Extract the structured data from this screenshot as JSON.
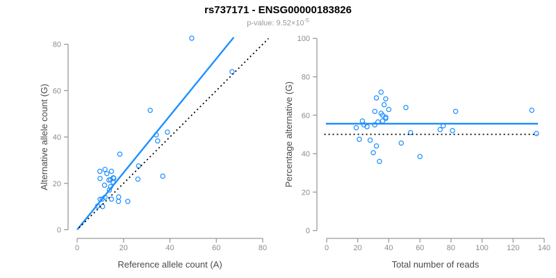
{
  "header": {
    "title": "rs737171 - ENSG00000183826",
    "subtitle_base": "p-value: 9.52×10",
    "subtitle_exponent": "-5"
  },
  "colors": {
    "accent_blue": "#1E90FF",
    "dashed_black": "#000000",
    "axis_gray": "#9a9a9a",
    "tick_label_gray": "#8c8c8c",
    "axis_title_gray": "#4a4a4a",
    "subtitle_gray": "#9a9a9a"
  },
  "chart_data": [
    {
      "type": "scatter",
      "name": "allele-counts",
      "xlabel": "Reference allele count (A)",
      "ylabel": "Alternative allele count (G)",
      "xlim": [
        0,
        80
      ],
      "ylim": [
        0,
        80
      ],
      "xticks": [
        0,
        20,
        40,
        60,
        80
      ],
      "yticks": [
        0,
        20,
        40,
        60,
        80
      ],
      "grid": false,
      "marker": "open-circle",
      "points": [
        [
          9.8,
          25.2
        ],
        [
          9.9,
          22.1
        ],
        [
          12,
          26
        ],
        [
          12.8,
          24.2
        ],
        [
          18.4,
          32.6
        ],
        [
          31.5,
          51.5
        ],
        [
          49.4,
          82.6
        ],
        [
          11.8,
          19.2
        ],
        [
          13.7,
          21.4
        ],
        [
          14.8,
          25.2
        ],
        [
          15.6,
          22.4
        ],
        [
          14.4,
          21.6
        ],
        [
          9.9,
          13.1
        ],
        [
          10.8,
          13.2
        ],
        [
          12,
          14
        ],
        [
          13.9,
          17.1
        ],
        [
          14.4,
          18.6
        ],
        [
          15.5,
          20.5
        ],
        [
          15.8,
          22.2
        ],
        [
          8.8,
          10.2
        ],
        [
          26.5,
          27.5
        ],
        [
          34.7,
          38.3
        ],
        [
          34.1,
          40.9
        ],
        [
          38.9,
          42.1
        ],
        [
          66.8,
          68.2
        ],
        [
          11,
          10
        ],
        [
          26.2,
          21.8
        ],
        [
          14.8,
          13.2
        ],
        [
          17.9,
          14.1
        ],
        [
          17.8,
          12.2
        ],
        [
          36.9,
          23.1
        ],
        [
          21.8,
          12.2
        ]
      ],
      "lines": [
        {
          "name": "regression-line",
          "x1": 0,
          "y1": 0,
          "x2": 67.5,
          "y2": 83,
          "style": "solid",
          "color": "#1E90FF"
        },
        {
          "name": "identity-line",
          "x1": 0.8,
          "y1": 0.8,
          "x2": 82.5,
          "y2": 82.5,
          "style": "dotted",
          "color": "#000000"
        }
      ]
    },
    {
      "type": "scatter",
      "name": "percentage-vs-coverage",
      "xlabel": "Total number of reads",
      "ylabel": "Percentage alternative (G)",
      "xlim": [
        0,
        140
      ],
      "ylim": [
        0,
        100
      ],
      "xticks": [
        0,
        20,
        40,
        60,
        80,
        100,
        120,
        140
      ],
      "yticks": [
        0,
        20,
        40,
        60,
        80,
        100
      ],
      "grid": false,
      "marker": "open-circle",
      "points": [
        [
          35,
          72
        ],
        [
          32,
          69
        ],
        [
          38,
          68.5
        ],
        [
          37,
          65.5
        ],
        [
          51,
          64
        ],
        [
          83,
          62
        ],
        [
          132,
          62.6
        ],
        [
          31,
          62
        ],
        [
          35,
          61
        ],
        [
          40,
          63
        ],
        [
          38,
          59
        ],
        [
          36,
          60
        ],
        [
          23,
          57
        ],
        [
          24,
          55
        ],
        [
          26,
          54
        ],
        [
          31,
          55
        ],
        [
          33,
          56.5
        ],
        [
          36,
          57
        ],
        [
          38,
          58.3
        ],
        [
          19,
          53.5
        ],
        [
          54,
          51
        ],
        [
          73,
          52.5
        ],
        [
          75,
          54.5
        ],
        [
          81,
          52
        ],
        [
          135,
          50.5
        ],
        [
          21,
          47.5
        ],
        [
          48,
          45.5
        ],
        [
          28,
          47
        ],
        [
          32,
          44
        ],
        [
          30,
          40.5
        ],
        [
          60,
          38.5
        ],
        [
          34,
          36
        ]
      ],
      "lines": [
        {
          "name": "mean-line",
          "x1": -0.5,
          "y1": 55.6,
          "x2": 136,
          "y2": 55.6,
          "style": "solid",
          "color": "#1E90FF"
        },
        {
          "name": "null-line",
          "x1": -1.5,
          "y1": 50,
          "x2": 135.5,
          "y2": 50,
          "style": "dotted",
          "color": "#000000"
        }
      ]
    }
  ]
}
